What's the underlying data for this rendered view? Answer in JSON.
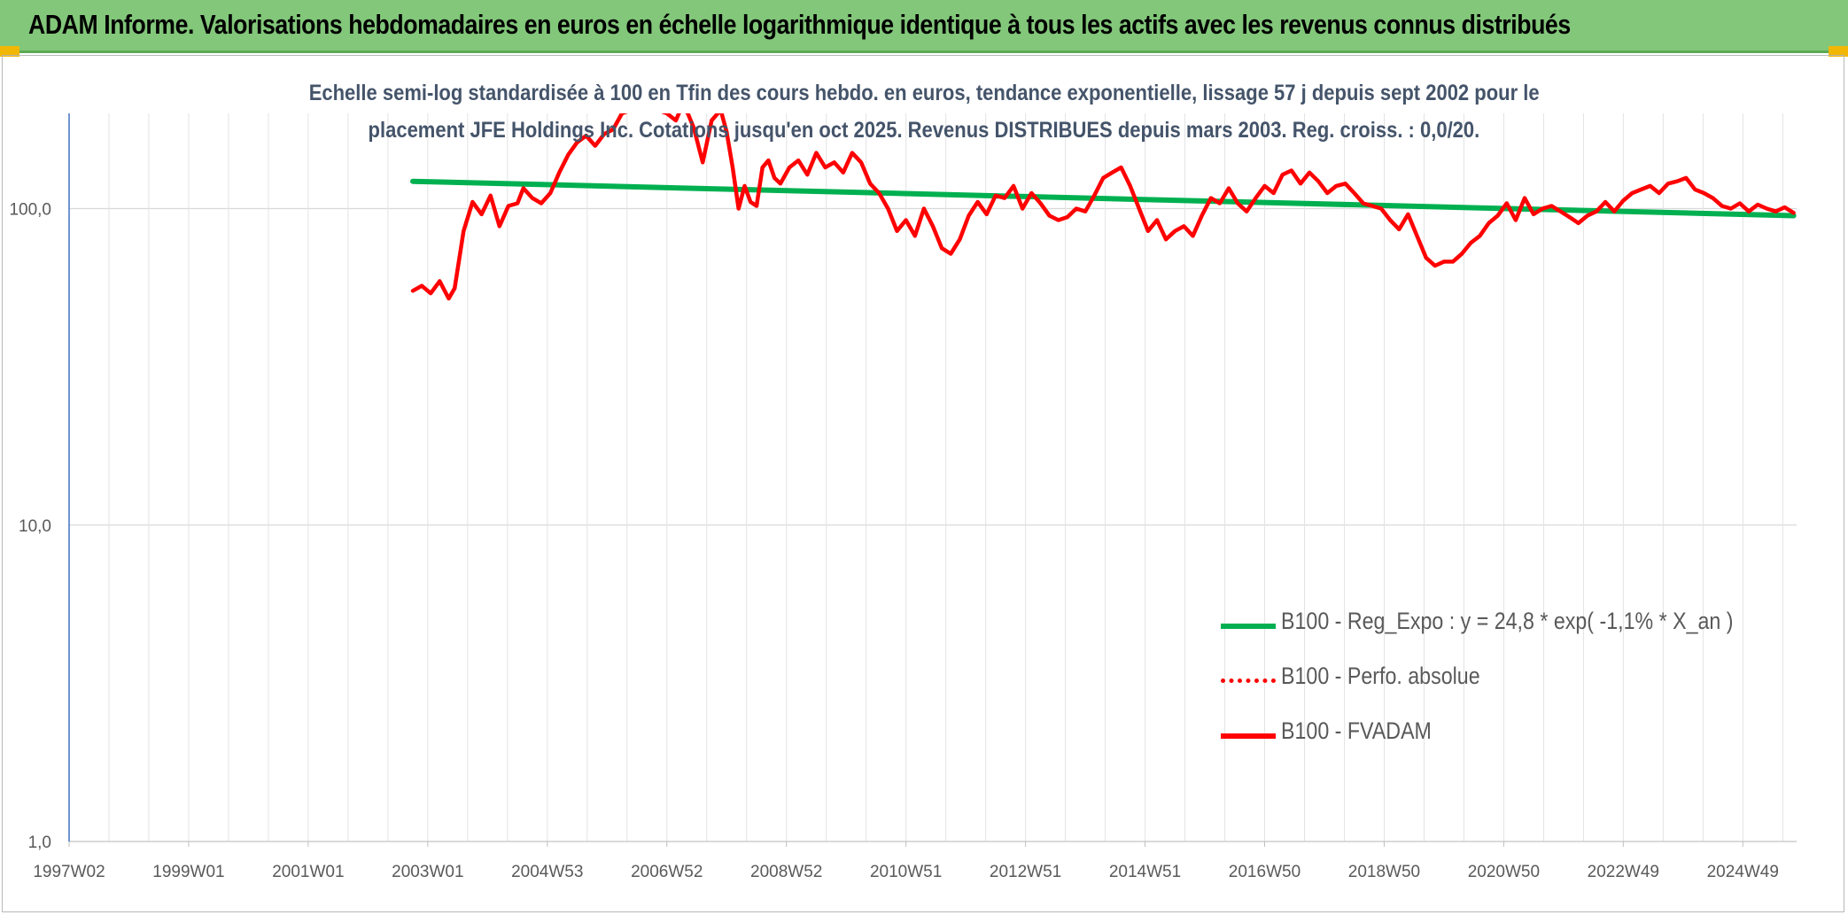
{
  "header": {
    "title": "ADAM Informe. Valorisations hebdomadaires en euros en échelle logarithmique identique à tous les actifs avec les revenus connus distribués"
  },
  "colors": {
    "banner": "#82c77a",
    "regression": "#00b050",
    "fvadam": "#ff0000",
    "perfo": "#ff0000",
    "subtitle": "#44546a"
  },
  "chart_data": {
    "type": "line",
    "title_line1": "Echelle semi-log standardisée à 100 en Tfin des cours hebdo. en euros, tendance exponentielle, lissage 57 j depuis sept 2002 pour le",
    "title_line2": "placement JFE Holdings Inc. Cotations jusqu'en oct 2025. Revenus DISTRIBUES depuis mars 2003. Reg. croiss. : 0,0/20.",
    "y_scale": "log",
    "ylim": [
      1,
      200
    ],
    "y_ticks": [
      {
        "value": 1,
        "label": "1,0"
      },
      {
        "value": 10,
        "label": "10,0"
      },
      {
        "value": 100,
        "label": "100,0"
      }
    ],
    "xlim": [
      1997.0,
      2025.9
    ],
    "x_ticks": [
      {
        "value": 1997.0,
        "label": "1997W02"
      },
      {
        "value": 1999.0,
        "label": "1999W01"
      },
      {
        "value": 2001.0,
        "label": "2001W01"
      },
      {
        "value": 2003.0,
        "label": "2003W01"
      },
      {
        "value": 2005.0,
        "label": "2004W53"
      },
      {
        "value": 2007.0,
        "label": "2006W52"
      },
      {
        "value": 2009.0,
        "label": "2008W52"
      },
      {
        "value": 2011.0,
        "label": "2010W51"
      },
      {
        "value": 2013.0,
        "label": "2012W51"
      },
      {
        "value": 2015.0,
        "label": "2014W51"
      },
      {
        "value": 2017.0,
        "label": "2016W50"
      },
      {
        "value": 2019.0,
        "label": "2018W50"
      },
      {
        "value": 2021.0,
        "label": "2020W50"
      },
      {
        "value": 2023.0,
        "label": "2022W49"
      },
      {
        "value": 2025.0,
        "label": "2024W49"
      }
    ],
    "grid": true,
    "legend_position": "bottom-right",
    "series": [
      {
        "name": "B100 - Reg_Expo : y = 24,8 * exp( -1,1% *  X_an )",
        "style": "solid",
        "x": [
          2002.75,
          2025.85
        ],
        "y": [
          122,
          95
        ]
      },
      {
        "name": "B100 - Perfo. absolue",
        "style": "dotted",
        "x": [],
        "y": []
      },
      {
        "name": "B100 - FVADAM",
        "style": "solid",
        "x": [
          2002.75,
          2002.9,
          2003.05,
          2003.2,
          2003.35,
          2003.45,
          2003.6,
          2003.75,
          2003.9,
          2004.05,
          2004.2,
          2004.35,
          2004.5,
          2004.6,
          2004.75,
          2004.9,
          2005.05,
          2005.2,
          2005.35,
          2005.5,
          2005.65,
          2005.8,
          2005.95,
          2006.1,
          2006.25,
          2006.4,
          2006.55,
          2006.7,
          2006.85,
          2007.0,
          2007.15,
          2007.25,
          2007.35,
          2007.45,
          2007.6,
          2007.75,
          2007.9,
          2008.0,
          2008.1,
          2008.2,
          2008.3,
          2008.4,
          2008.5,
          2008.6,
          2008.7,
          2008.8,
          2008.9,
          2009.05,
          2009.2,
          2009.35,
          2009.5,
          2009.65,
          2009.8,
          2009.95,
          2010.1,
          2010.25,
          2010.4,
          2010.55,
          2010.7,
          2010.85,
          2011.0,
          2011.15,
          2011.3,
          2011.45,
          2011.6,
          2011.75,
          2011.9,
          2012.05,
          2012.2,
          2012.35,
          2012.5,
          2012.65,
          2012.8,
          2012.95,
          2013.1,
          2013.25,
          2013.4,
          2013.55,
          2013.7,
          2013.85,
          2014.0,
          2014.15,
          2014.3,
          2014.45,
          2014.6,
          2014.75,
          2014.9,
          2015.05,
          2015.2,
          2015.35,
          2015.5,
          2015.65,
          2015.8,
          2015.95,
          2016.1,
          2016.25,
          2016.4,
          2016.55,
          2016.7,
          2016.85,
          2017.0,
          2017.15,
          2017.3,
          2017.45,
          2017.6,
          2017.75,
          2017.9,
          2018.05,
          2018.2,
          2018.35,
          2018.5,
          2018.65,
          2018.8,
          2018.95,
          2019.1,
          2019.25,
          2019.4,
          2019.55,
          2019.7,
          2019.85,
          2020.0,
          2020.15,
          2020.3,
          2020.45,
          2020.6,
          2020.75,
          2020.9,
          2021.05,
          2021.2,
          2021.35,
          2021.5,
          2021.65,
          2021.8,
          2021.95,
          2022.1,
          2022.25,
          2022.4,
          2022.55,
          2022.7,
          2022.85,
          2023.0,
          2023.15,
          2023.3,
          2023.45,
          2023.6,
          2023.75,
          2023.9,
          2024.05,
          2024.2,
          2024.35,
          2024.5,
          2024.65,
          2024.8,
          2024.95,
          2025.1,
          2025.25,
          2025.4,
          2025.55,
          2025.7,
          2025.85
        ],
        "y": [
          55,
          57,
          54,
          59,
          52,
          56,
          85,
          105,
          96,
          110,
          88,
          102,
          104,
          116,
          108,
          104,
          112,
          130,
          148,
          162,
          170,
          158,
          172,
          178,
          200,
          205,
          210,
          215,
          205,
          200,
          190,
          210,
          200,
          180,
          140,
          190,
          205,
          175,
          135,
          100,
          118,
          105,
          102,
          135,
          142,
          125,
          120,
          135,
          142,
          128,
          150,
          135,
          140,
          130,
          150,
          140,
          120,
          112,
          100,
          85,
          92,
          82,
          100,
          88,
          75,
          72,
          80,
          95,
          105,
          96,
          110,
          108,
          118,
          100,
          112,
          104,
          95,
          92,
          94,
          100,
          98,
          110,
          125,
          130,
          135,
          118,
          100,
          85,
          92,
          80,
          85,
          88,
          82,
          95,
          108,
          104,
          116,
          104,
          98,
          108,
          118,
          112,
          128,
          132,
          120,
          130,
          122,
          112,
          118,
          120,
          112,
          104,
          102,
          100,
          92,
          86,
          96,
          82,
          70,
          66,
          68,
          68,
          72,
          78,
          82,
          90,
          95,
          104,
          92,
          108,
          96,
          100,
          102,
          98,
          94,
          90,
          95,
          98,
          105,
          98,
          106,
          112,
          115,
          118,
          112,
          120,
          122,
          125,
          115,
          112,
          108,
          102,
          100,
          104,
          98,
          103,
          100,
          98,
          101,
          97
        ]
      }
    ]
  },
  "legend": {
    "items": [
      {
        "label": "B100 - Reg_Expo : y = 24,8 * exp( -1,1% *  X_an )",
        "color": "#00b050",
        "style": "solid"
      },
      {
        "label": "B100 - Perfo. absolue",
        "color": "#ff0000",
        "style": "dotted"
      },
      {
        "label": "B100 - FVADAM",
        "color": "#ff0000",
        "style": "solid"
      }
    ]
  }
}
